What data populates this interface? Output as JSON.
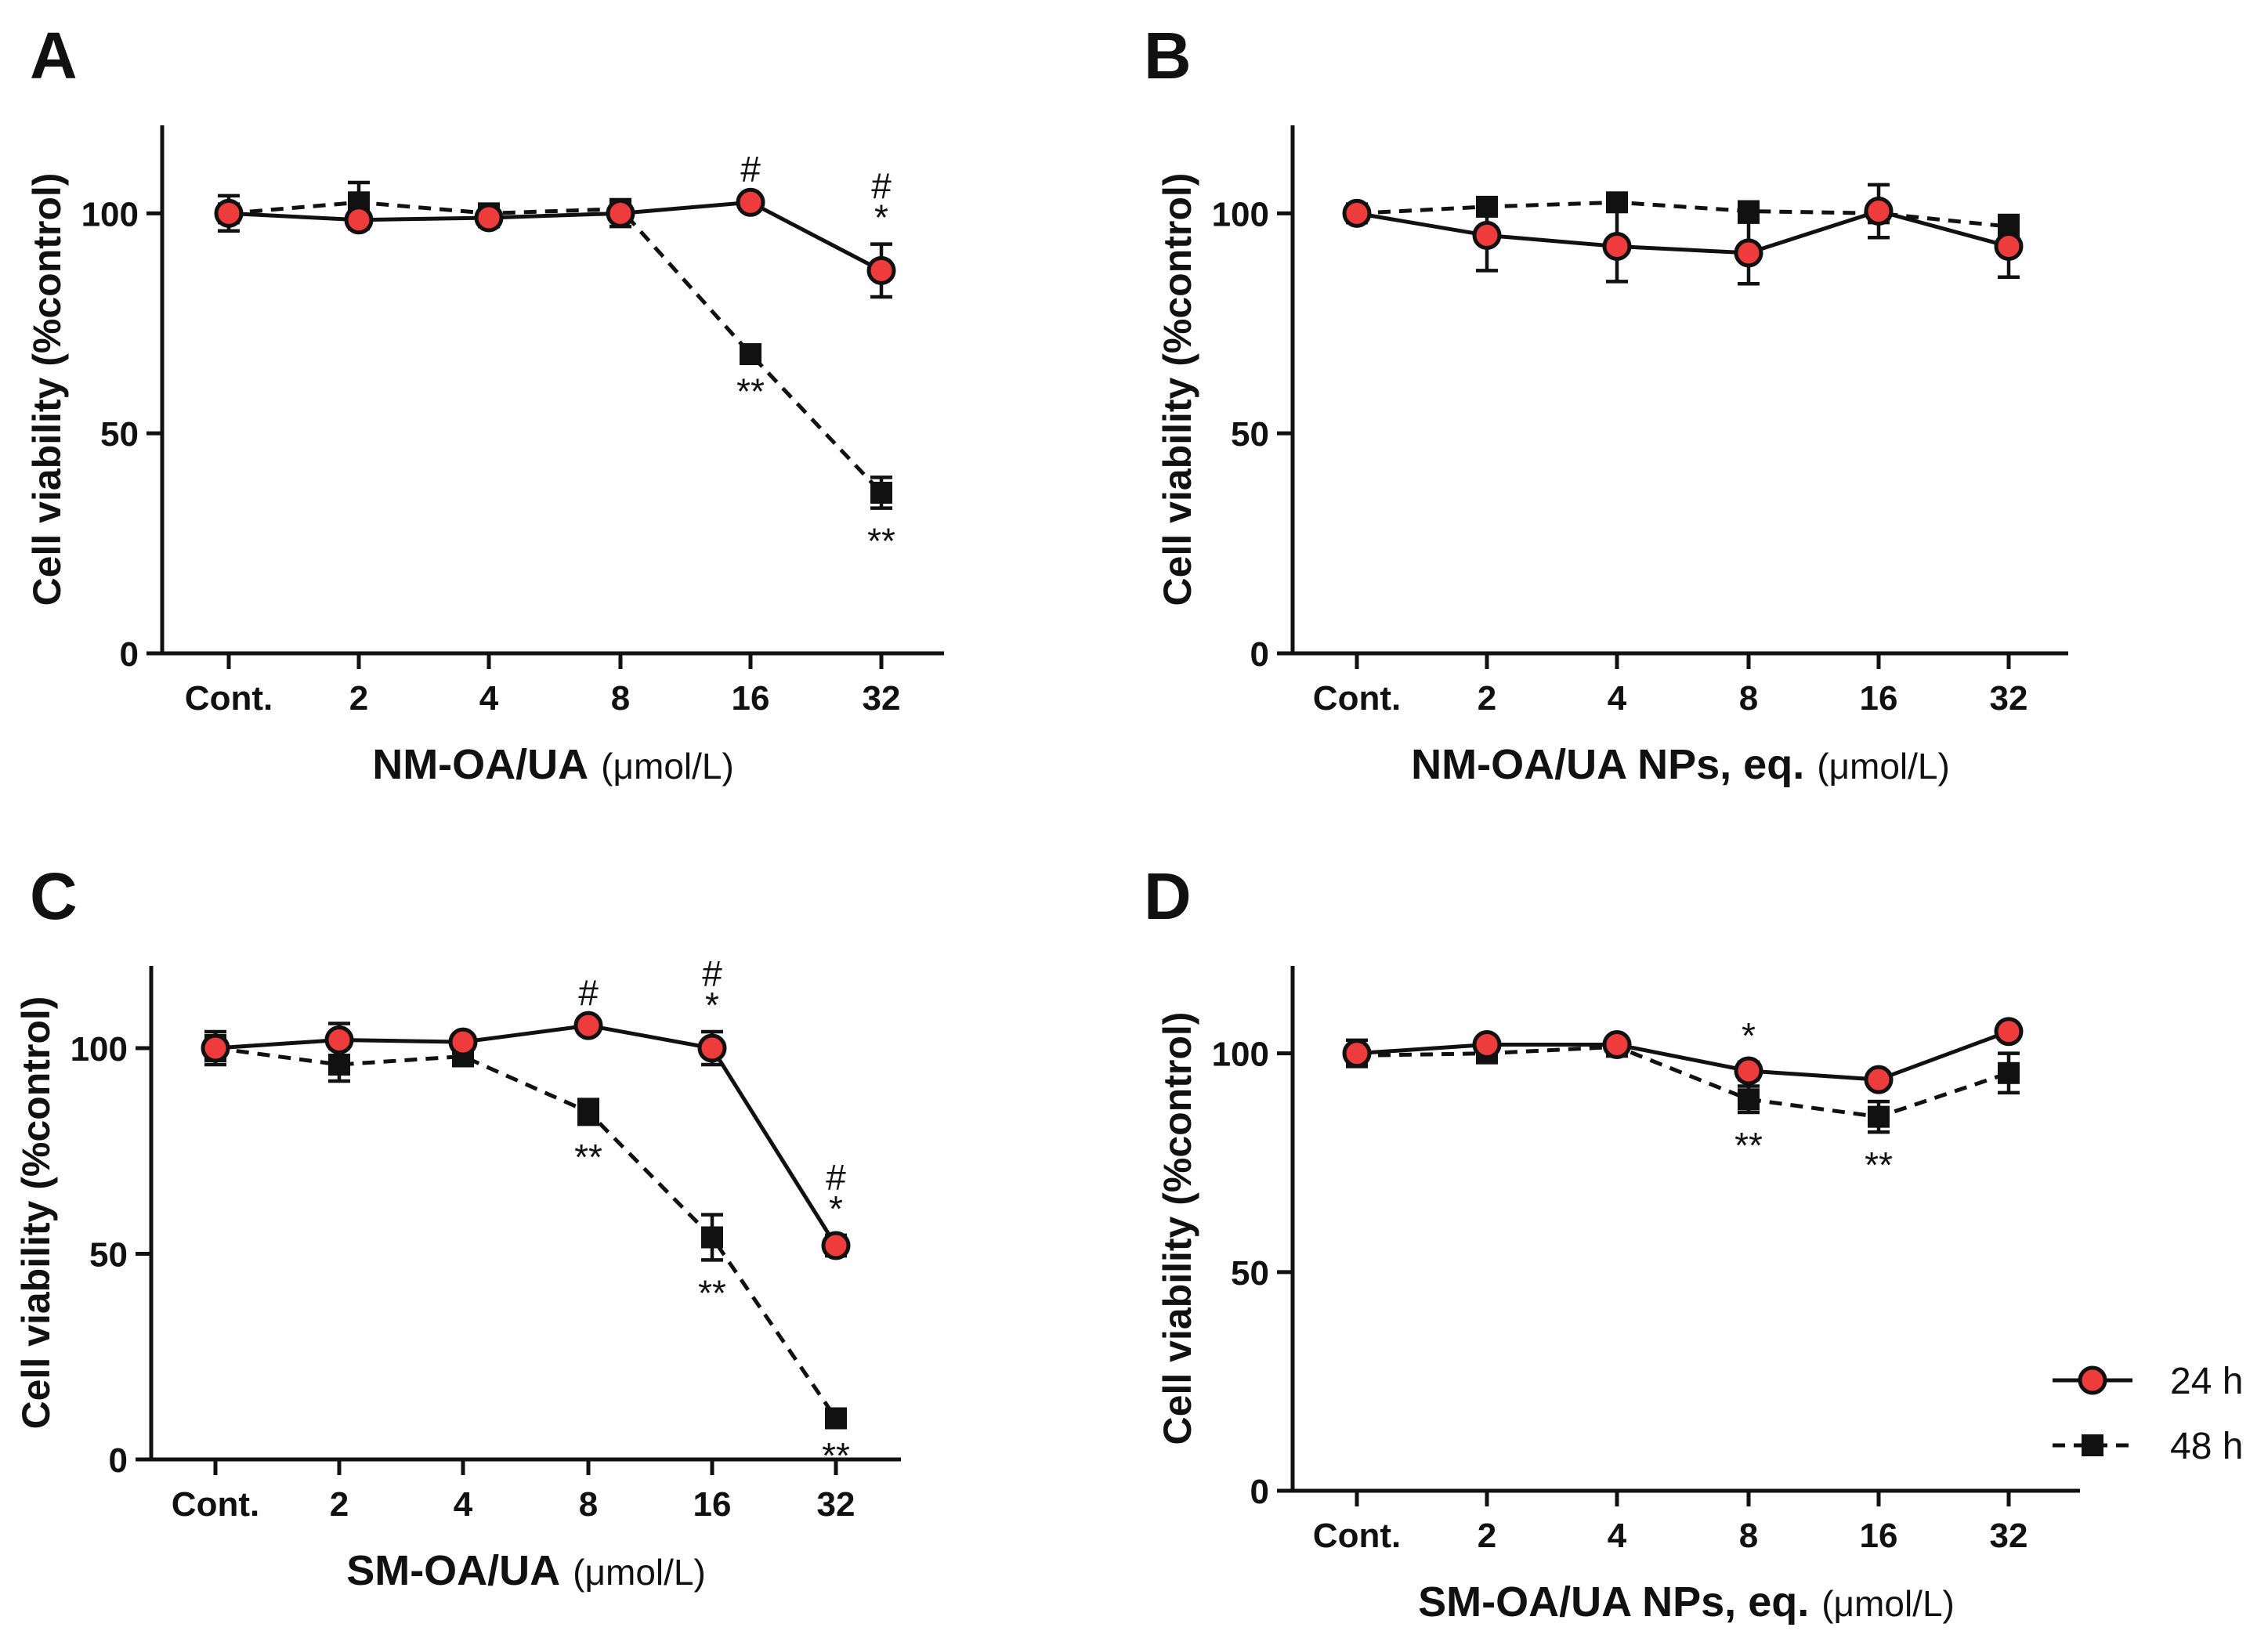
{
  "legend": {
    "entries": [
      {
        "label": "24 h",
        "style": "solid",
        "marker": "circle",
        "color": "#ee3b3b"
      },
      {
        "label": "48 h",
        "style": "dashed",
        "marker": "square",
        "color": "#111111"
      }
    ]
  },
  "chart_data": [
    {
      "panel": "A",
      "type": "line",
      "xlabel": "NM-OA/UA",
      "xunit": "(μmol/L)",
      "ylabel": "Cell viability (%control)",
      "ylim": [
        0,
        120
      ],
      "yticks": [
        0,
        50,
        100
      ],
      "categories": [
        "Cont.",
        "2",
        "4",
        "8",
        "16",
        "32"
      ],
      "series": [
        {
          "name": "24 h",
          "values": [
            100,
            98.5,
            99,
            100,
            102.5,
            87
          ],
          "err": [
            4,
            2,
            2,
            3,
            1.5,
            6
          ]
        },
        {
          "name": "48 h",
          "values": [
            100,
            102.5,
            100,
            101,
            68,
            36.5
          ],
          "err": [
            2,
            4.5,
            1.5,
            1.5,
            1,
            3.5
          ]
        }
      ],
      "annotations": [
        {
          "category": "16",
          "series": "24 h",
          "above": [
            "#"
          ]
        },
        {
          "category": "32",
          "series": "24 h",
          "above": [
            "#",
            "*"
          ]
        },
        {
          "category": "16",
          "series": "48 h",
          "below": "**"
        },
        {
          "category": "32",
          "series": "48 h",
          "below": "**"
        }
      ]
    },
    {
      "panel": "B",
      "type": "line",
      "xlabel": "NM-OA/UA NPs, eq.",
      "xunit": "(μmol/L)",
      "ylabel": "Cell viability (%control)",
      "ylim": [
        0,
        120
      ],
      "yticks": [
        0,
        50,
        100
      ],
      "categories": [
        "Cont.",
        "2",
        "4",
        "8",
        "16",
        "32"
      ],
      "series": [
        {
          "name": "24 h",
          "values": [
            100,
            95,
            92.5,
            91,
            100.5,
            92.5
          ],
          "err": [
            2,
            8,
            8,
            7,
            6,
            7
          ]
        },
        {
          "name": "48 h",
          "values": [
            100,
            101.5,
            102.5,
            100.5,
            100,
            97
          ],
          "err": [
            2,
            1,
            1,
            1,
            1,
            2.5
          ]
        }
      ],
      "annotations": []
    },
    {
      "panel": "C",
      "type": "line",
      "xlabel": "SM-OA/UA",
      "xunit": "(μmol/L)",
      "ylabel": "Cell viability (%control)",
      "ylim": [
        0,
        120
      ],
      "yticks": [
        0,
        50,
        100
      ],
      "categories": [
        "Cont.",
        "2",
        "4",
        "8",
        "16",
        "32"
      ],
      "series": [
        {
          "name": "24 h",
          "values": [
            100,
            102,
            101.5,
            105.5,
            100,
            52
          ],
          "err": [
            4,
            4,
            1.5,
            1.5,
            4,
            2.5
          ]
        },
        {
          "name": "48 h",
          "values": [
            100,
            96,
            98,
            84.5,
            54,
            10
          ],
          "err": [
            3,
            4,
            1.5,
            3,
            5.5,
            1
          ]
        }
      ],
      "annotations": [
        {
          "category": "8",
          "series": "24 h",
          "above": [
            "#"
          ]
        },
        {
          "category": "16",
          "series": "24 h",
          "above": [
            "#",
            "*"
          ]
        },
        {
          "category": "32",
          "series": "24 h",
          "above": [
            "#",
            "*"
          ]
        },
        {
          "category": "8",
          "series": "48 h",
          "below": "**"
        },
        {
          "category": "16",
          "series": "48 h",
          "below": "**"
        },
        {
          "category": "32",
          "series": "48 h",
          "below": "**"
        }
      ]
    },
    {
      "panel": "D",
      "type": "line",
      "xlabel": "SM-OA/UA NPs, eq.",
      "xunit": "(μmol/L)",
      "ylabel": "Cell viability (%control)",
      "ylim": [
        0,
        120
      ],
      "yticks": [
        0,
        50,
        100
      ],
      "categories": [
        "Cont.",
        "2",
        "4",
        "8",
        "16",
        "32"
      ],
      "series": [
        {
          "name": "24 h",
          "values": [
            100,
            102,
            102,
            96,
            94,
            105
          ],
          "err": [
            3,
            1.5,
            1.5,
            2,
            1.5,
            1.5
          ]
        },
        {
          "name": "48 h",
          "values": [
            99.5,
            100,
            101.5,
            89.5,
            85.5,
            95.5
          ],
          "err": [
            1.5,
            1.5,
            1.5,
            3,
            3.5,
            4.5
          ]
        }
      ],
      "annotations": [
        {
          "category": "8",
          "series": "24 h",
          "above": [
            "*"
          ]
        },
        {
          "category": "8",
          "series": "48 h",
          "below": "**"
        },
        {
          "category": "16",
          "series": "48 h",
          "below": "**"
        }
      ]
    }
  ]
}
